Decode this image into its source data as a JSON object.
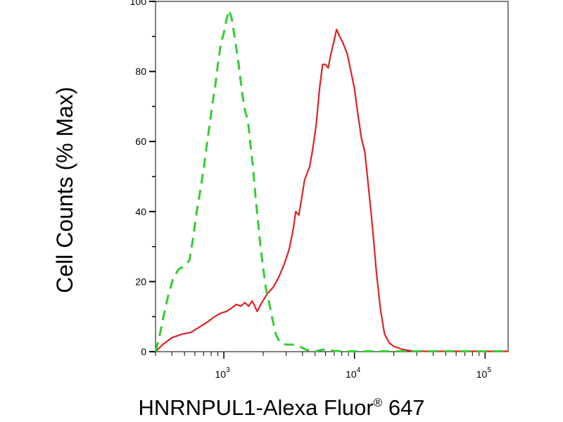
{
  "chart_data": {
    "type": "line",
    "xlabel_main": "HNRNPUL1-Alexa Fluor",
    "xlabel_reg": "®",
    "xlabel_tail": " 647",
    "ylabel": "Cell Counts (% Max)",
    "xscale": "log",
    "xlim": [
      300,
      150000
    ],
    "ylim": [
      0,
      100
    ],
    "y_ticks": [
      0,
      20,
      40,
      60,
      80,
      100
    ],
    "x_ticks": [
      {
        "value": 1000,
        "base": "10",
        "exp": "3"
      },
      {
        "value": 10000,
        "base": "10",
        "exp": "4"
      },
      {
        "value": 100000,
        "base": "10",
        "exp": "5"
      }
    ],
    "grid": false,
    "legend": false,
    "series": [
      {
        "color": "#dd2222",
        "dash": "solid",
        "points": [
          [
            300,
            0
          ],
          [
            340,
            2
          ],
          [
            400,
            4
          ],
          [
            480,
            5
          ],
          [
            560,
            5.5
          ],
          [
            650,
            7
          ],
          [
            750,
            8.5
          ],
          [
            850,
            10
          ],
          [
            950,
            11
          ],
          [
            1050,
            11.5
          ],
          [
            1150,
            12.5
          ],
          [
            1250,
            13.5
          ],
          [
            1350,
            13
          ],
          [
            1450,
            14
          ],
          [
            1550,
            13
          ],
          [
            1650,
            14.5
          ],
          [
            1800,
            11.5
          ],
          [
            1950,
            14
          ],
          [
            2150,
            16.5
          ],
          [
            2400,
            18.5
          ],
          [
            2650,
            21.5
          ],
          [
            2900,
            25
          ],
          [
            3150,
            29
          ],
          [
            3400,
            35
          ],
          [
            3550,
            40
          ],
          [
            3750,
            39
          ],
          [
            3950,
            44
          ],
          [
            4150,
            49
          ],
          [
            4350,
            51
          ],
          [
            4550,
            53
          ],
          [
            4800,
            58
          ],
          [
            5100,
            65
          ],
          [
            5400,
            75
          ],
          [
            5700,
            82
          ],
          [
            6000,
            82
          ],
          [
            6300,
            81
          ],
          [
            6600,
            85
          ],
          [
            6900,
            88
          ],
          [
            7300,
            92
          ],
          [
            7700,
            90
          ],
          [
            8200,
            88
          ],
          [
            8800,
            85
          ],
          [
            9400,
            80
          ],
          [
            10000,
            75
          ],
          [
            10600,
            68
          ],
          [
            11300,
            61
          ],
          [
            12000,
            57
          ],
          [
            12800,
            47
          ],
          [
            13700,
            36
          ],
          [
            14700,
            23
          ],
          [
            15800,
            12
          ],
          [
            17000,
            5
          ],
          [
            18500,
            2.5
          ],
          [
            20000,
            1.5
          ],
          [
            23000,
            0.7
          ],
          [
            27000,
            0.2
          ],
          [
            35000,
            0.1
          ],
          [
            60000,
            0.1
          ],
          [
            100000,
            0.1
          ],
          [
            150000,
            0.1
          ]
        ]
      },
      {
        "color": "#33cc33",
        "dash": "dashed",
        "points": [
          [
            300,
            0
          ],
          [
            320,
            4
          ],
          [
            345,
            10
          ],
          [
            375,
            16
          ],
          [
            410,
            21
          ],
          [
            450,
            23.5
          ],
          [
            500,
            24.5
          ],
          [
            545,
            26
          ],
          [
            580,
            32
          ],
          [
            620,
            40
          ],
          [
            660,
            46
          ],
          [
            700,
            52
          ],
          [
            740,
            59
          ],
          [
            780,
            65
          ],
          [
            820,
            71
          ],
          [
            860,
            76
          ],
          [
            900,
            82
          ],
          [
            950,
            88
          ],
          [
            1000,
            91
          ],
          [
            1050,
            95
          ],
          [
            1100,
            97.5
          ],
          [
            1150,
            95
          ],
          [
            1220,
            89
          ],
          [
            1300,
            82
          ],
          [
            1380,
            74
          ],
          [
            1450,
            69
          ],
          [
            1530,
            66
          ],
          [
            1600,
            59
          ],
          [
            1680,
            52
          ],
          [
            1750,
            44
          ],
          [
            1830,
            37
          ],
          [
            1910,
            30
          ],
          [
            2000,
            24
          ],
          [
            2100,
            18
          ],
          [
            2220,
            14
          ],
          [
            2350,
            9.5
          ],
          [
            2500,
            5
          ],
          [
            2700,
            2.5
          ],
          [
            3000,
            2
          ],
          [
            3400,
            2
          ],
          [
            3800,
            1.5
          ],
          [
            4300,
            0.5
          ],
          [
            5000,
            0.1
          ],
          [
            6000,
            0.7
          ],
          [
            7000,
            0.2
          ],
          [
            9000,
            0.1
          ],
          [
            12000,
            0.1
          ],
          [
            20000,
            0.1
          ],
          [
            50000,
            0.1
          ],
          [
            150000,
            0.1
          ]
        ]
      }
    ]
  }
}
